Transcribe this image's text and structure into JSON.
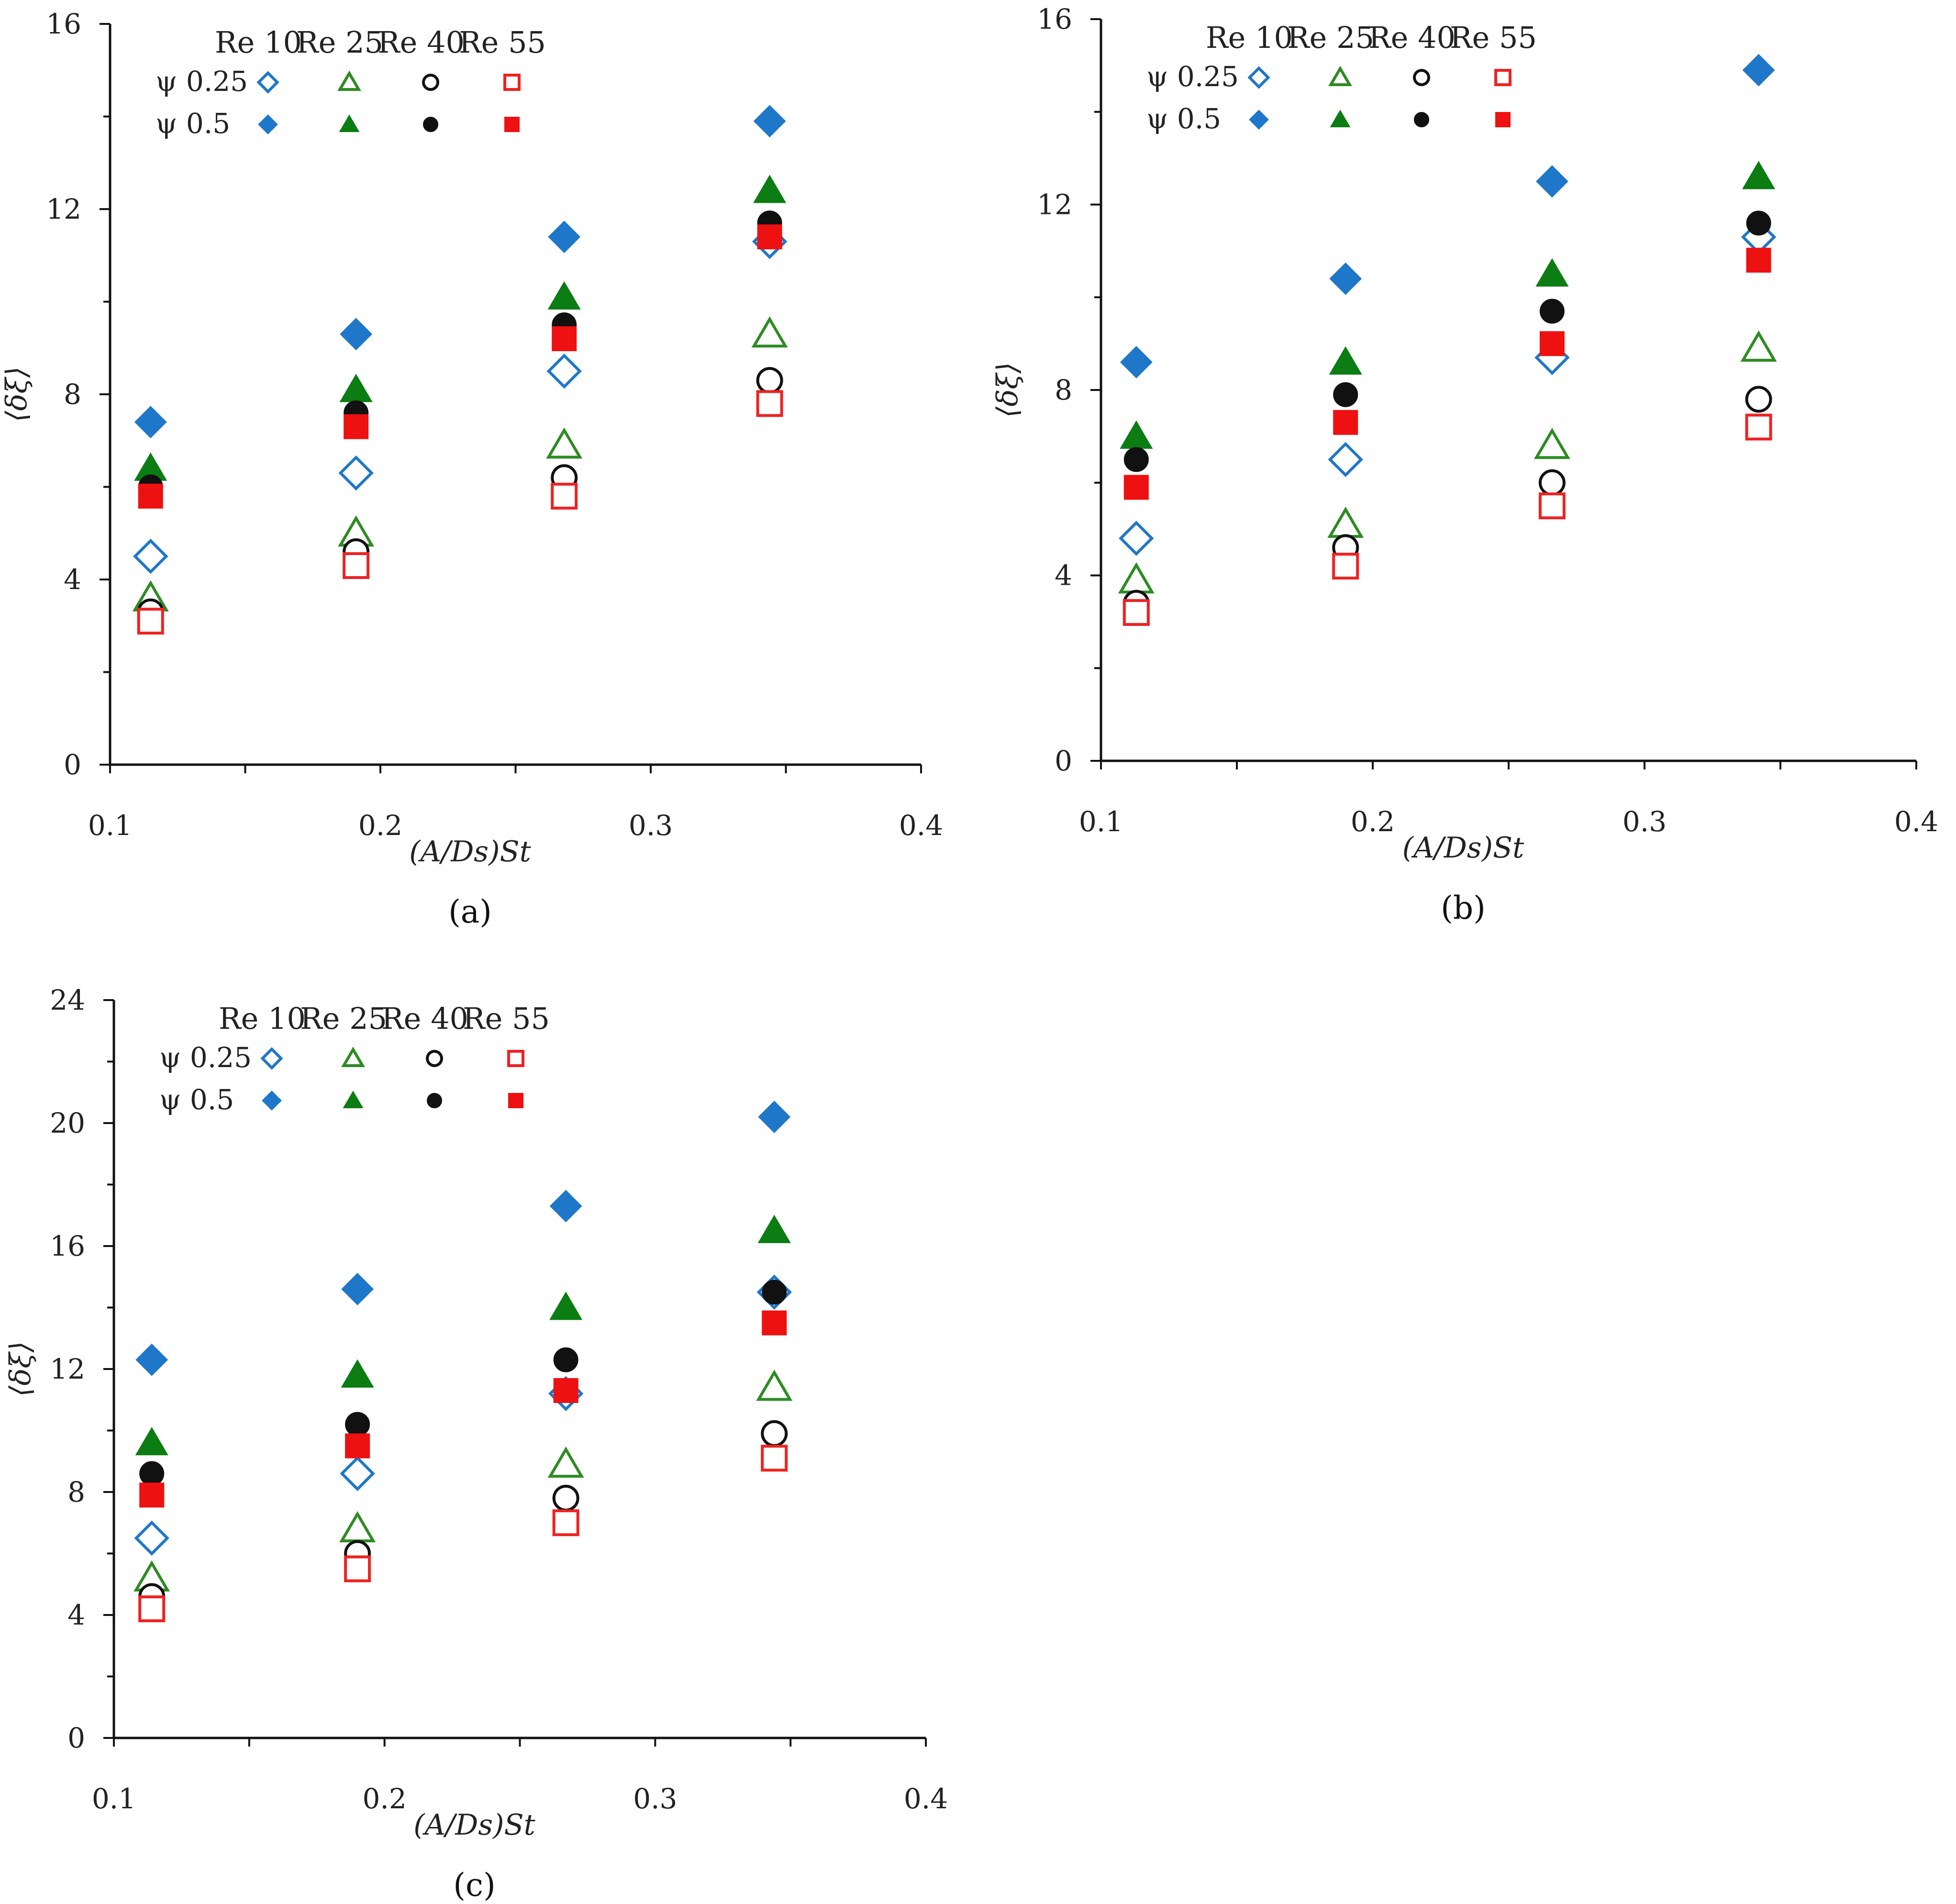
{
  "chart_data": [
    {
      "type": "scatter",
      "panel_label": "(a)",
      "xlabel": "(A/Ds)St",
      "ylabel": "⟨δξ⟩",
      "xlim": [
        0.1,
        0.4
      ],
      "ylim": [
        0,
        16
      ],
      "x_ticks": [
        "0.1",
        "0.2",
        "0.3",
        "0.4"
      ],
      "y_ticks": [
        "0",
        "4",
        "8",
        "12",
        "16"
      ],
      "x": [
        0.115,
        0.191,
        0.268,
        0.344
      ],
      "legend": {
        "columns": [
          "Re 10",
          "Re 25",
          "Re 40",
          "Re 55"
        ],
        "rows": [
          "ψ 0.25",
          "ψ 0.5"
        ]
      },
      "series": [
        {
          "name": "ψ 0.25 Re 10",
          "color": "#1f77c9",
          "marker": "diamond-open",
          "values": [
            4.5,
            6.3,
            8.5,
            11.3
          ]
        },
        {
          "name": "ψ 0.25 Re 25",
          "color": "#2e8b22",
          "marker": "triangle-open",
          "values": [
            3.6,
            5.0,
            6.9,
            9.3
          ]
        },
        {
          "name": "ψ 0.25 Re 40",
          "color": "#111111",
          "marker": "circle-open",
          "values": [
            3.3,
            4.6,
            6.2,
            8.3
          ]
        },
        {
          "name": "ψ 0.25 Re 55",
          "color": "#ee2222",
          "marker": "square-open",
          "values": [
            3.1,
            4.3,
            5.8,
            7.8
          ]
        },
        {
          "name": "ψ 0.5 Re 10",
          "color": "#1f77c9",
          "marker": "diamond",
          "values": [
            7.4,
            9.3,
            11.4,
            13.9
          ]
        },
        {
          "name": "ψ 0.5 Re 25",
          "color": "#0b7d12",
          "marker": "triangle",
          "values": [
            6.4,
            8.1,
            10.1,
            12.4
          ]
        },
        {
          "name": "ψ 0.5 Re 40",
          "color": "#111111",
          "marker": "circle",
          "values": [
            6.0,
            7.6,
            9.5,
            11.7
          ]
        },
        {
          "name": "ψ 0.5 Re 55",
          "color": "#ee1111",
          "marker": "square",
          "values": [
            5.8,
            7.3,
            9.2,
            11.4
          ]
        }
      ]
    },
    {
      "type": "scatter",
      "panel_label": "(b)",
      "xlabel": "(A/Ds)St",
      "ylabel": "⟨δξ⟩",
      "xlim": [
        0.1,
        0.4
      ],
      "ylim": [
        0,
        16
      ],
      "x_ticks": [
        "0.1",
        "0.2",
        "0.3",
        "0.4"
      ],
      "y_ticks": [
        "0",
        "4",
        "8",
        "12",
        "16"
      ],
      "x": [
        0.113,
        0.19,
        0.266,
        0.342
      ],
      "legend": {
        "columns": [
          "Re 10",
          "Re 25",
          "Re 40",
          "Re 55"
        ],
        "rows": [
          "ψ 0.25",
          "ψ 0.5"
        ]
      },
      "series": [
        {
          "name": "ψ 0.25 Re 10",
          "color": "#1f77c9",
          "marker": "diamond-open",
          "values": [
            4.8,
            6.5,
            8.7,
            11.3
          ]
        },
        {
          "name": "ψ 0.25 Re 25",
          "color": "#2e8b22",
          "marker": "triangle-open",
          "values": [
            3.9,
            5.1,
            6.8,
            8.9
          ]
        },
        {
          "name": "ψ 0.25 Re 40",
          "color": "#111111",
          "marker": "circle-open",
          "values": [
            3.4,
            4.6,
            6.0,
            7.8
          ]
        },
        {
          "name": "ψ 0.25 Re 55",
          "color": "#ee2222",
          "marker": "square-open",
          "values": [
            3.2,
            4.2,
            5.5,
            7.2
          ]
        },
        {
          "name": "ψ 0.5 Re 10",
          "color": "#1f77c9",
          "marker": "diamond",
          "values": [
            8.6,
            10.4,
            12.5,
            14.9
          ]
        },
        {
          "name": "ψ 0.5 Re 25",
          "color": "#0b7d12",
          "marker": "triangle",
          "values": [
            7.0,
            8.6,
            10.5,
            12.6
          ]
        },
        {
          "name": "ψ 0.5 Re 40",
          "color": "#111111",
          "marker": "circle",
          "values": [
            6.5,
            7.9,
            9.7,
            11.6
          ]
        },
        {
          "name": "ψ 0.5 Re 55",
          "color": "#ee1111",
          "marker": "square",
          "values": [
            5.9,
            7.3,
            9.0,
            10.8
          ]
        }
      ]
    },
    {
      "type": "scatter",
      "panel_label": "(c)",
      "xlabel": "(A/Ds)St",
      "ylabel": "⟨δξ⟩",
      "xlim": [
        0.1,
        0.4
      ],
      "ylim": [
        0,
        24
      ],
      "x_ticks": [
        "0.1",
        "0.2",
        "0.3",
        "0.4"
      ],
      "y_ticks": [
        "0",
        "4",
        "8",
        "12",
        "16",
        "20",
        "24"
      ],
      "x": [
        0.114,
        0.19,
        0.267,
        0.344
      ],
      "legend": {
        "columns": [
          "Re 10",
          "Re 25",
          "Re 40",
          "Re 55"
        ],
        "rows": [
          "ψ 0.25",
          "ψ 0.5"
        ]
      },
      "series": [
        {
          "name": "ψ 0.25 Re 10",
          "color": "#1f77c9",
          "marker": "diamond-open",
          "values": [
            6.5,
            8.6,
            11.2,
            14.5
          ]
        },
        {
          "name": "ψ 0.25 Re 25",
          "color": "#2e8b22",
          "marker": "triangle-open",
          "values": [
            5.2,
            6.8,
            8.9,
            11.4
          ]
        },
        {
          "name": "ψ 0.25 Re 40",
          "color": "#111111",
          "marker": "circle-open",
          "values": [
            4.6,
            6.0,
            7.8,
            9.9
          ]
        },
        {
          "name": "ψ 0.25 Re 55",
          "color": "#ee2222",
          "marker": "square-open",
          "values": [
            4.2,
            5.5,
            7.0,
            9.1
          ]
        },
        {
          "name": "ψ 0.5 Re 10",
          "color": "#1f77c9",
          "marker": "diamond",
          "values": [
            12.3,
            14.6,
            17.3,
            20.2
          ]
        },
        {
          "name": "ψ 0.5 Re 25",
          "color": "#0b7d12",
          "marker": "triangle",
          "values": [
            9.6,
            11.8,
            14.0,
            16.5
          ]
        },
        {
          "name": "ψ 0.5 Re 40",
          "color": "#111111",
          "marker": "circle",
          "values": [
            8.6,
            10.2,
            12.3,
            14.5
          ]
        },
        {
          "name": "ψ 0.5 Re 55",
          "color": "#ee1111",
          "marker": "square",
          "values": [
            7.9,
            9.5,
            11.3,
            13.5
          ]
        }
      ]
    }
  ]
}
